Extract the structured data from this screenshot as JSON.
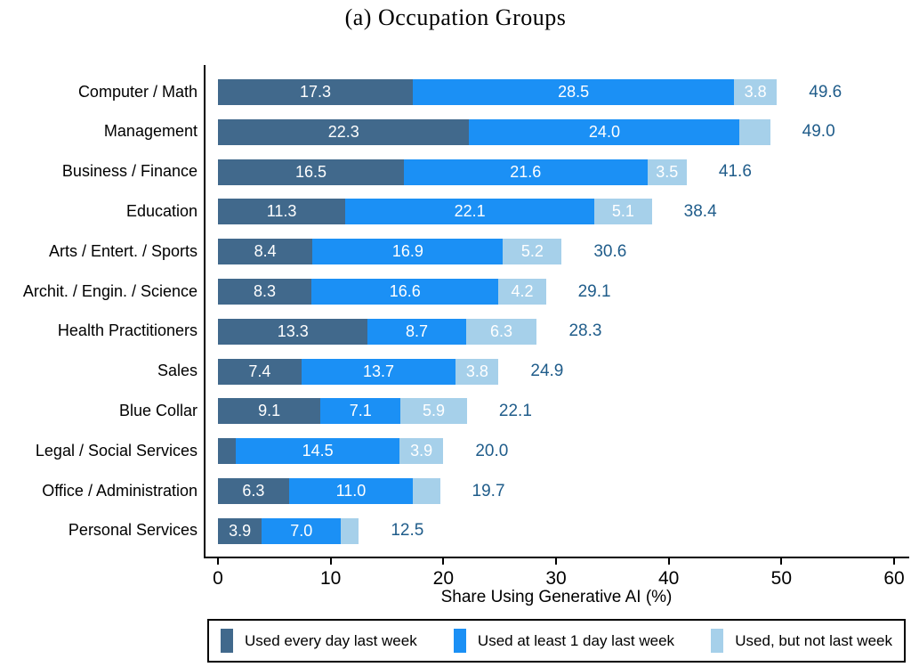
{
  "colors": {
    "used_every_day": "#41698c",
    "used_at_least_1_day": "#1b90f5",
    "used_not_last_week": "#a6d0ea",
    "total_label_text": "#1f5c8a",
    "axis": "#000000"
  },
  "chart_data": {
    "type": "bar",
    "orientation": "horizontal",
    "stacked": true,
    "title": "(a) Occupation Groups",
    "xlabel": "Share Using Generative AI (%)",
    "xlim": [
      0,
      60
    ],
    "x_ticks": [
      "0",
      "10",
      "20",
      "30",
      "40",
      "50",
      "60"
    ],
    "grid": false,
    "legend_position": "bottom",
    "categories": [
      "Computer / Math",
      "Management",
      "Business / Finance",
      "Education",
      "Arts / Entert. / Sports",
      "Archit. / Engin. / Science",
      "Health Practitioners",
      "Sales",
      "Blue Collar",
      "Legal / Social Services",
      "Office / Administration",
      "Personal Services"
    ],
    "series": [
      {
        "name": "Used every day last week",
        "color_key": "used_every_day",
        "values": [
          17.3,
          22.3,
          16.5,
          11.3,
          8.4,
          8.3,
          13.3,
          7.4,
          9.1,
          1.6,
          6.3,
          3.9
        ],
        "labels": [
          "17.3",
          "22.3",
          "16.5",
          "11.3",
          "8.4",
          "8.3",
          "13.3",
          "7.4",
          "9.1",
          "",
          "6.3",
          "3.9"
        ]
      },
      {
        "name": "Used at least 1 day last week",
        "color_key": "used_at_least_1_day",
        "values": [
          28.5,
          24.0,
          21.6,
          22.1,
          16.9,
          16.6,
          8.7,
          13.7,
          7.1,
          14.5,
          11.0,
          7.0
        ],
        "labels": [
          "28.5",
          "24.0",
          "21.6",
          "22.1",
          "16.9",
          "16.6",
          "8.7",
          "13.7",
          "7.1",
          "14.5",
          "11.0",
          "7.0"
        ]
      },
      {
        "name": "Used, but not last week",
        "color_key": "used_not_last_week",
        "values": [
          3.8,
          2.7,
          3.5,
          5.1,
          5.2,
          4.2,
          6.3,
          3.8,
          5.9,
          3.9,
          2.4,
          1.6
        ],
        "labels": [
          "3.8",
          "",
          "3.5",
          "5.1",
          "5.2",
          "4.2",
          "6.3",
          "3.8",
          "5.9",
          "3.9",
          "",
          ""
        ]
      }
    ],
    "totals": [
      "49.6",
      "49.0",
      "41.6",
      "38.4",
      "30.6",
      "29.1",
      "28.3",
      "24.9",
      "22.1",
      "20.0",
      "19.7",
      "12.5"
    ]
  }
}
